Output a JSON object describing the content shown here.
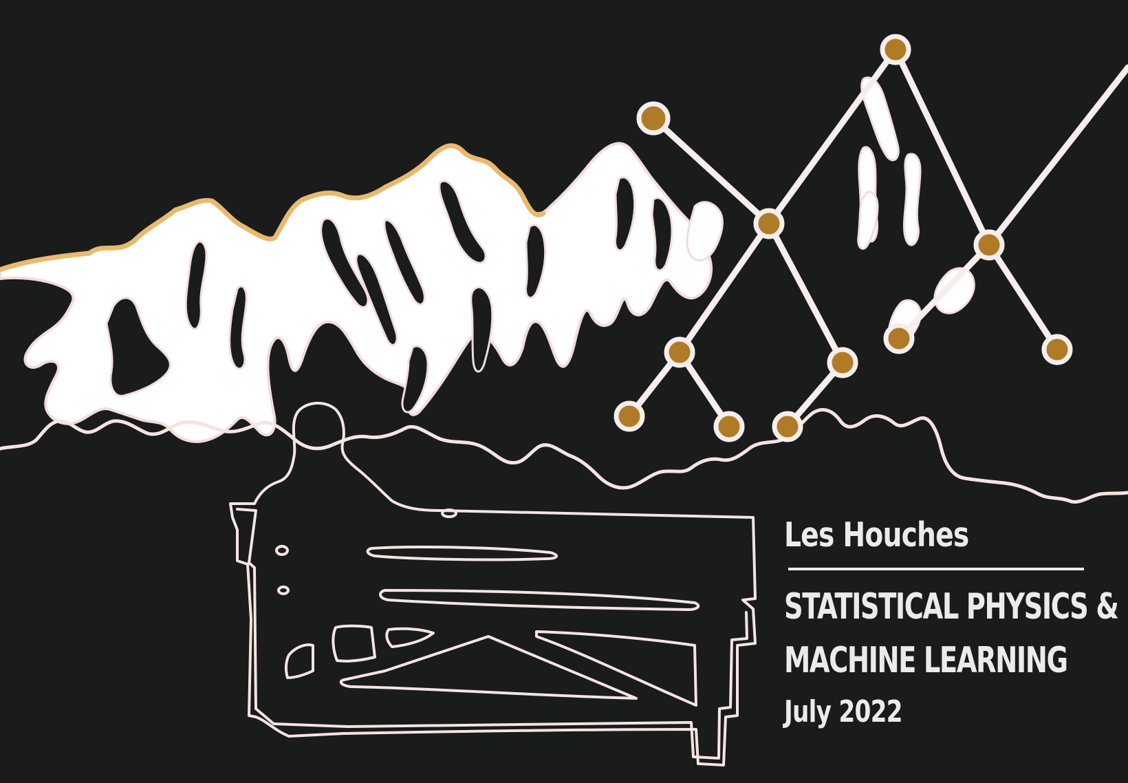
{
  "poster": {
    "venue": "Les Houches",
    "title_line_1": "STATISTICAL PHYSICS &",
    "title_line_2": "MACHINE LEARNING",
    "date": "July 2022"
  },
  "colors": {
    "background": "#1a1b1b",
    "snow": "#ffffff",
    "outline": "#f4e4e2",
    "sunlit_ridge": "#e9b96e",
    "node": "#b07b27",
    "text": "#ecebea"
  },
  "icons": {
    "mountains": "mountain-range-illustration",
    "network": "neural-network-graph-illustration",
    "piano": "piano-illustration"
  }
}
